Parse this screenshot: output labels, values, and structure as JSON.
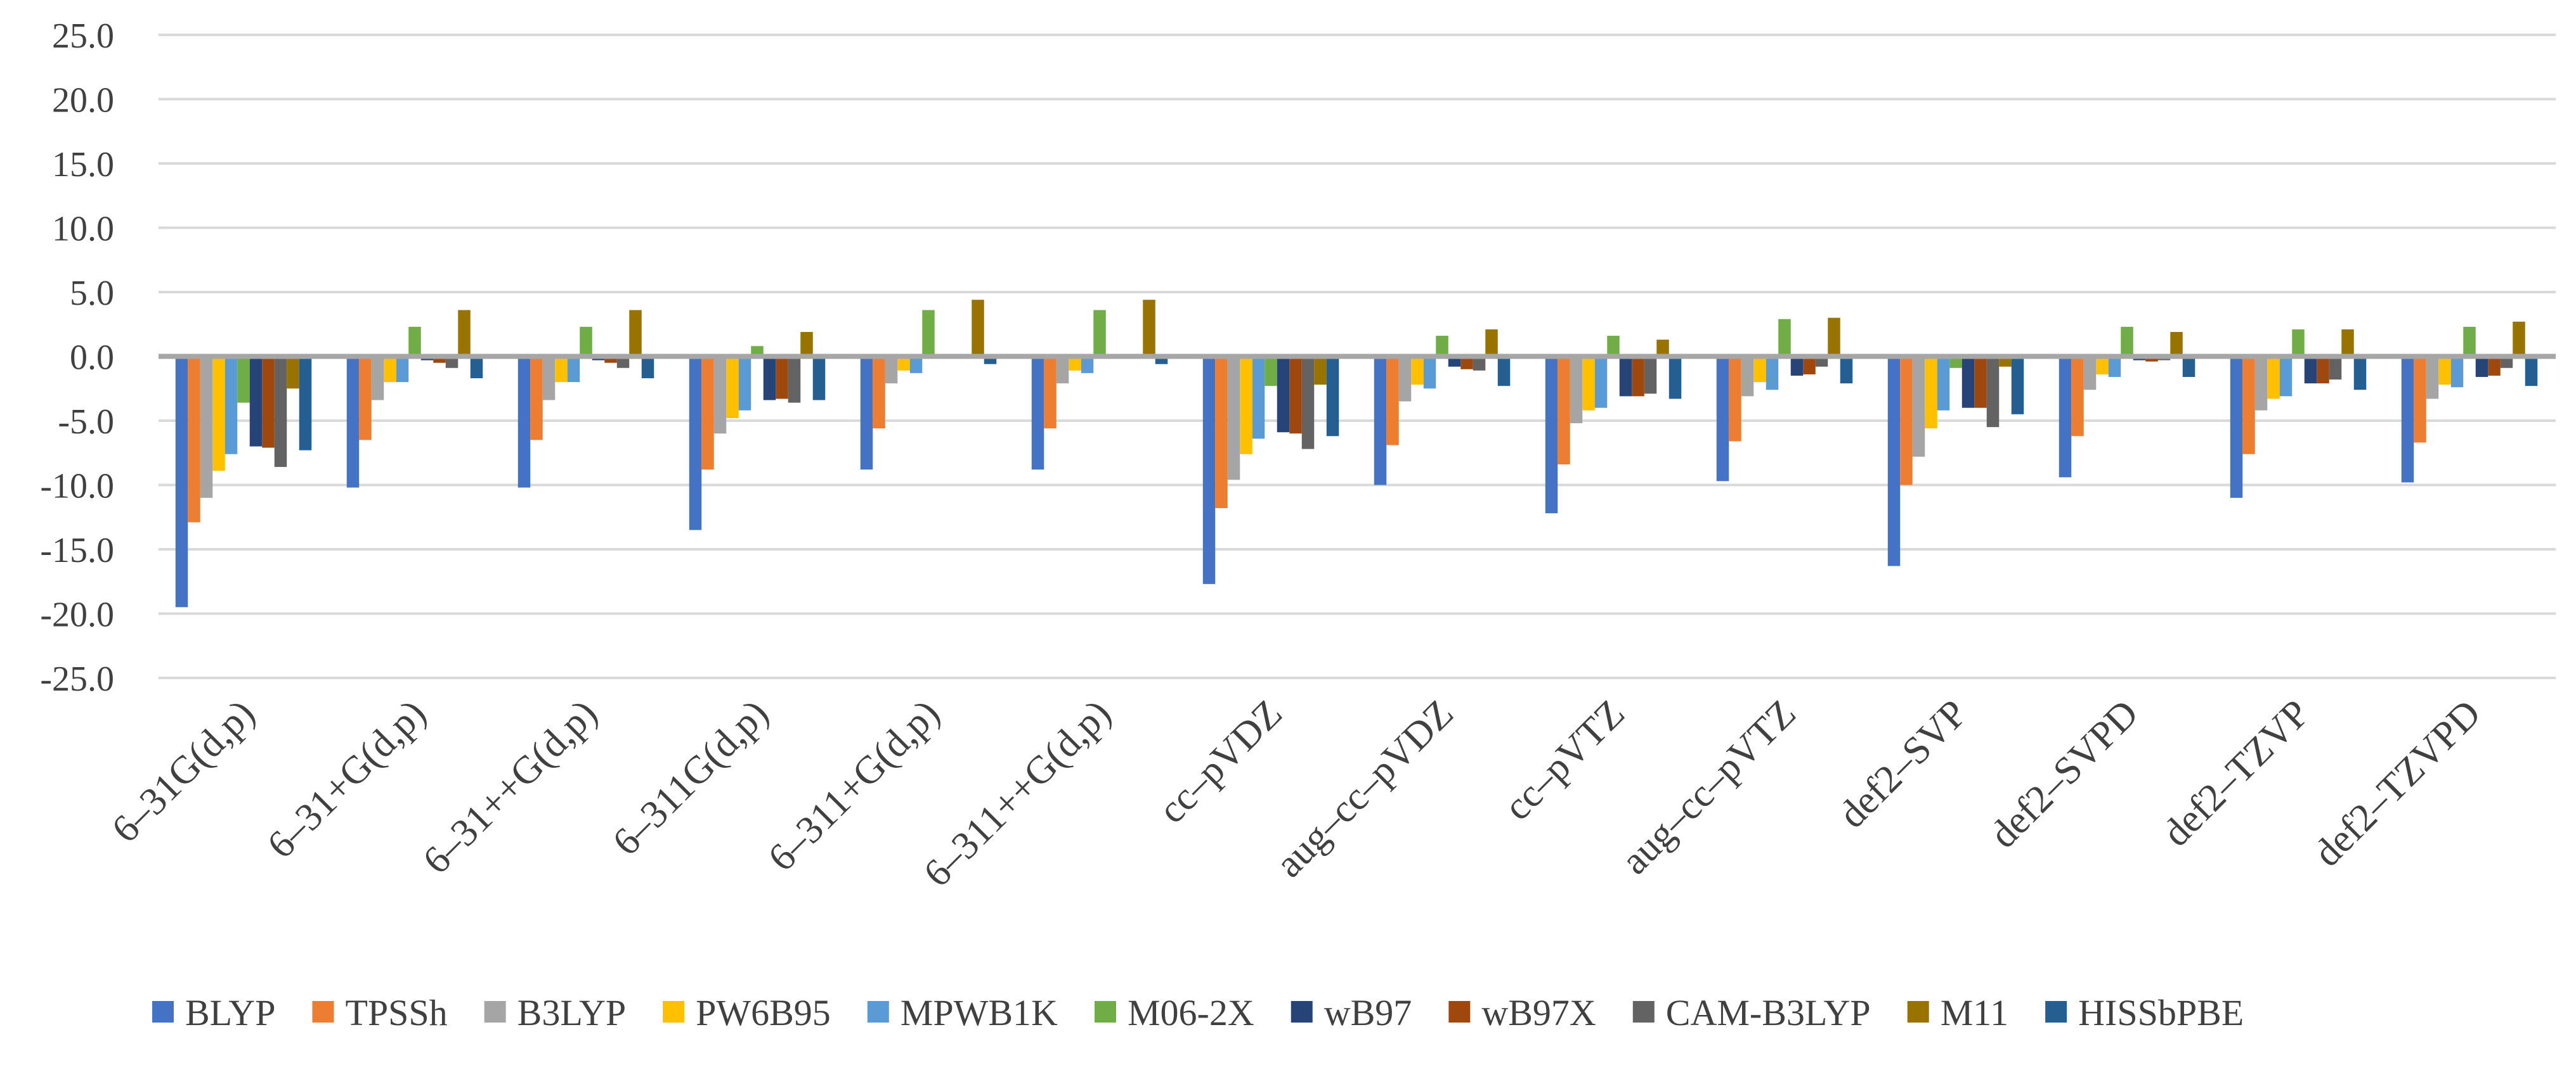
{
  "chart_data": {
    "type": "bar",
    "title": "",
    "xlabel": "",
    "ylabel": "",
    "ylim": [
      -25,
      25
    ],
    "yticks": [
      "-25.0",
      "-20.0",
      "-15.0",
      "-10.0",
      "-5.0",
      "0.0",
      "5.0",
      "10.0",
      "15.0",
      "20.0",
      "25.0"
    ],
    "grid": true,
    "legend_position": "bottom",
    "categories": [
      "6–31G(d,p)",
      "6–31+G(d,p)",
      "6–31++G(d,p)",
      "6–311G(d,p)",
      "6–311+G(d,p)",
      "6–311++G(d,p)",
      "cc–pVDZ",
      "aug–cc–pVDZ",
      "cc–pVTZ",
      "aug–cc–pVTZ",
      "def2–SVP",
      "def2–SVPD",
      "def2–TZVP",
      "def2–TZVPD"
    ],
    "series": [
      {
        "name": "BLYP",
        "color": "#4472C4",
        "values": [
          -19.5,
          -10.2,
          -10.2,
          -13.5,
          -8.8,
          -8.8,
          -17.7,
          -10.0,
          -12.2,
          -9.7,
          -16.3,
          -9.4,
          -11.0,
          -9.8
        ]
      },
      {
        "name": "TPSSh",
        "color": "#ED7D31",
        "values": [
          -12.9,
          -6.5,
          -6.5,
          -8.8,
          -5.6,
          -5.6,
          -11.8,
          -6.9,
          -8.4,
          -6.6,
          -10.0,
          -6.2,
          -7.6,
          -6.7
        ]
      },
      {
        "name": "B3LYP",
        "color": "#A5A5A5",
        "values": [
          -11.0,
          -3.4,
          -3.4,
          -6.0,
          -2.1,
          -2.1,
          -9.6,
          -3.5,
          -5.2,
          -3.1,
          -7.8,
          -2.6,
          -4.2,
          -3.3
        ]
      },
      {
        "name": "PW6B95",
        "color": "#FFC000",
        "values": [
          -8.9,
          -2.0,
          -2.0,
          -4.8,
          -1.1,
          -1.1,
          -7.6,
          -2.2,
          -4.2,
          -2.0,
          -5.6,
          -1.4,
          -3.3,
          -2.2
        ]
      },
      {
        "name": "MPWB1K",
        "color": "#5B9BD5",
        "values": [
          -7.6,
          -2.0,
          -2.0,
          -4.2,
          -1.3,
          -1.3,
          -6.4,
          -2.5,
          -4.0,
          -2.6,
          -4.2,
          -1.6,
          -3.1,
          -2.4
        ]
      },
      {
        "name": "M06-2X",
        "color": "#70AD47",
        "values": [
          -3.6,
          2.3,
          2.3,
          0.8,
          3.6,
          3.6,
          -2.3,
          1.6,
          1.6,
          2.9,
          -0.9,
          2.3,
          2.1,
          2.3
        ]
      },
      {
        "name": "wB97",
        "color": "#264478",
        "values": [
          -7.0,
          -0.3,
          -0.3,
          -3.4,
          0.0,
          0.0,
          -5.9,
          -0.8,
          -3.1,
          -1.5,
          -4.0,
          -0.3,
          -2.1,
          -1.6
        ]
      },
      {
        "name": "wB97X",
        "color": "#9E480E",
        "values": [
          -7.1,
          -0.5,
          -0.5,
          -3.3,
          0.0,
          0.0,
          -6.0,
          -1.0,
          -3.1,
          -1.4,
          -4.0,
          -0.4,
          -2.1,
          -1.5
        ]
      },
      {
        "name": "CAM-B3LYP",
        "color": "#636363",
        "values": [
          -8.6,
          -0.9,
          -0.9,
          -3.6,
          0.0,
          0.0,
          -7.2,
          -1.1,
          -2.9,
          -0.8,
          -5.5,
          -0.3,
          -1.8,
          -0.9
        ]
      },
      {
        "name": "M11",
        "color": "#997300",
        "values": [
          -2.5,
          3.6,
          3.6,
          1.9,
          4.4,
          4.4,
          -2.2,
          2.1,
          1.3,
          3.0,
          -0.8,
          1.9,
          2.1,
          2.7
        ]
      },
      {
        "name": "HISSbPBE",
        "color": "#255E91",
        "values": [
          -7.3,
          -1.7,
          -1.7,
          -3.4,
          -0.6,
          -0.6,
          -6.2,
          -2.3,
          -3.3,
          -2.1,
          -4.5,
          -1.6,
          -2.6,
          -2.3
        ]
      }
    ]
  }
}
